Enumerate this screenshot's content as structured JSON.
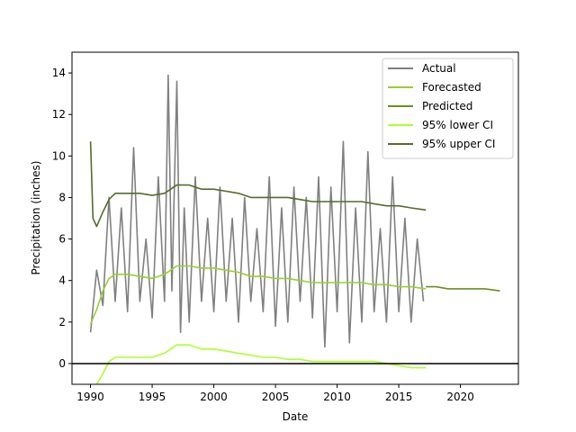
{
  "chart_data": {
    "type": "line",
    "title": "",
    "xlabel": "Date",
    "ylabel": "Precipitation (inches)",
    "xlim": [
      1988.5,
      2024.7
    ],
    "ylim": [
      -1.0,
      15.0
    ],
    "x_ticks": [
      1990,
      1995,
      2000,
      2005,
      2010,
      2015,
      2020
    ],
    "y_ticks": [
      0,
      2,
      4,
      6,
      8,
      10,
      12,
      14
    ],
    "x_tick_labels": [
      "1990",
      "1995",
      "2000",
      "2005",
      "2010",
      "2015",
      "2020"
    ],
    "y_tick_labels": [
      "0",
      "2",
      "4",
      "6",
      "8",
      "10",
      "12",
      "14"
    ],
    "zero_line": 0,
    "grid": false,
    "legend_position": "top-right",
    "legend": [
      "Actual",
      "Forecasted",
      "Predicted",
      "95% lower CI",
      "95% upper CI"
    ],
    "series": [
      {
        "name": "Actual",
        "color": "#808080",
        "x": [
          1990.0,
          1990.5,
          1991.0,
          1991.5,
          1992.0,
          1992.5,
          1993.0,
          1993.5,
          1994.0,
          1994.5,
          1995.0,
          1995.5,
          1996.0,
          1996.3,
          1996.6,
          1997.0,
          1997.3,
          1997.6,
          1998.0,
          1998.5,
          1999.0,
          1999.5,
          2000.0,
          2000.5,
          2001.0,
          2001.5,
          2002.0,
          2002.5,
          2003.0,
          2003.5,
          2004.0,
          2004.5,
          2005.0,
          2005.5,
          2006.0,
          2006.5,
          2007.0,
          2007.5,
          2008.0,
          2008.5,
          2009.0,
          2009.5,
          2010.0,
          2010.5,
          2011.0,
          2011.5,
          2012.0,
          2012.5,
          2013.0,
          2013.5,
          2014.0,
          2014.5,
          2015.0,
          2015.5,
          2016.0,
          2016.5,
          2017.0
        ],
        "values": [
          1.5,
          4.5,
          2.8,
          8.0,
          3.0,
          7.5,
          2.5,
          10.4,
          3.0,
          6.0,
          2.2,
          9.0,
          3.0,
          13.9,
          3.5,
          13.6,
          1.5,
          7.5,
          2.0,
          9.0,
          3.0,
          7.0,
          2.5,
          8.5,
          3.0,
          7.0,
          2.0,
          8.0,
          3.0,
          6.5,
          2.5,
          9.0,
          1.8,
          7.5,
          2.0,
          8.5,
          3.0,
          8.0,
          2.2,
          9.0,
          0.8,
          8.5,
          2.5,
          10.7,
          1.0,
          7.5,
          2.0,
          10.2,
          2.5,
          6.5,
          2.0,
          9.0,
          2.5,
          7.0,
          2.0,
          6.0,
          3.0
        ]
      },
      {
        "name": "Forecasted",
        "color": "#9acd32",
        "x": [
          1990.0,
          1990.5,
          1991.0,
          1991.5,
          1992.0,
          1993.0,
          1994.0,
          1995.0,
          1996.0,
          1997.0,
          1998.0,
          1999.0,
          2000.0,
          2001.0,
          2002.0,
          2003.0,
          2004.0,
          2005.0,
          2006.0,
          2007.0,
          2008.0,
          2009.0,
          2010.0,
          2011.0,
          2012.0,
          2013.0,
          2014.0,
          2015.0,
          2016.0,
          2017.2
        ],
        "values": [
          1.9,
          2.6,
          3.5,
          4.1,
          4.3,
          4.3,
          4.2,
          4.1,
          4.3,
          4.7,
          4.7,
          4.6,
          4.6,
          4.5,
          4.4,
          4.2,
          4.2,
          4.1,
          4.1,
          4.0,
          3.9,
          3.9,
          3.9,
          3.9,
          3.9,
          3.8,
          3.8,
          3.7,
          3.7,
          3.6
        ]
      },
      {
        "name": "Predicted",
        "color": "#6b8e23",
        "x": [
          2017.2,
          2018.0,
          2019.0,
          2020.0,
          2021.0,
          2022.0,
          2023.2
        ],
        "values": [
          3.7,
          3.7,
          3.6,
          3.6,
          3.6,
          3.6,
          3.5
        ]
      },
      {
        "name": "95% lower CI",
        "color": "#adff2f",
        "x": [
          1990.5,
          1991.0,
          1991.5,
          1992.0,
          1993.0,
          1994.0,
          1995.0,
          1996.0,
          1997.0,
          1998.0,
          1999.0,
          2000.0,
          2001.0,
          2002.0,
          2003.0,
          2004.0,
          2005.0,
          2006.0,
          2007.0,
          2008.0,
          2009.0,
          2010.0,
          2011.0,
          2012.0,
          2013.0,
          2014.0,
          2015.0,
          2016.0,
          2017.2
        ],
        "values": [
          -1.0,
          -0.5,
          0.1,
          0.3,
          0.3,
          0.3,
          0.3,
          0.5,
          0.9,
          0.9,
          0.7,
          0.7,
          0.6,
          0.5,
          0.4,
          0.3,
          0.3,
          0.2,
          0.2,
          0.1,
          0.1,
          0.1,
          0.1,
          0.1,
          0.1,
          0.0,
          -0.1,
          -0.2,
          -0.2
        ]
      },
      {
        "name": "95% upper CI",
        "color": "#556b2f",
        "x": [
          1990.0,
          1990.2,
          1990.5,
          1991.0,
          1991.5,
          1992.0,
          1993.0,
          1994.0,
          1995.0,
          1996.0,
          1997.0,
          1998.0,
          1999.0,
          2000.0,
          2001.0,
          2002.0,
          2003.0,
          2004.0,
          2005.0,
          2006.0,
          2007.0,
          2008.0,
          2009.0,
          2010.0,
          2011.0,
          2012.0,
          2013.0,
          2014.0,
          2015.0,
          2016.0,
          2017.2
        ],
        "values": [
          10.7,
          7.0,
          6.6,
          7.3,
          7.9,
          8.2,
          8.2,
          8.2,
          8.1,
          8.2,
          8.6,
          8.6,
          8.4,
          8.4,
          8.3,
          8.2,
          8.0,
          8.0,
          8.0,
          8.0,
          7.9,
          7.8,
          7.8,
          7.8,
          7.8,
          7.8,
          7.7,
          7.6,
          7.6,
          7.5,
          7.4
        ]
      }
    ]
  }
}
